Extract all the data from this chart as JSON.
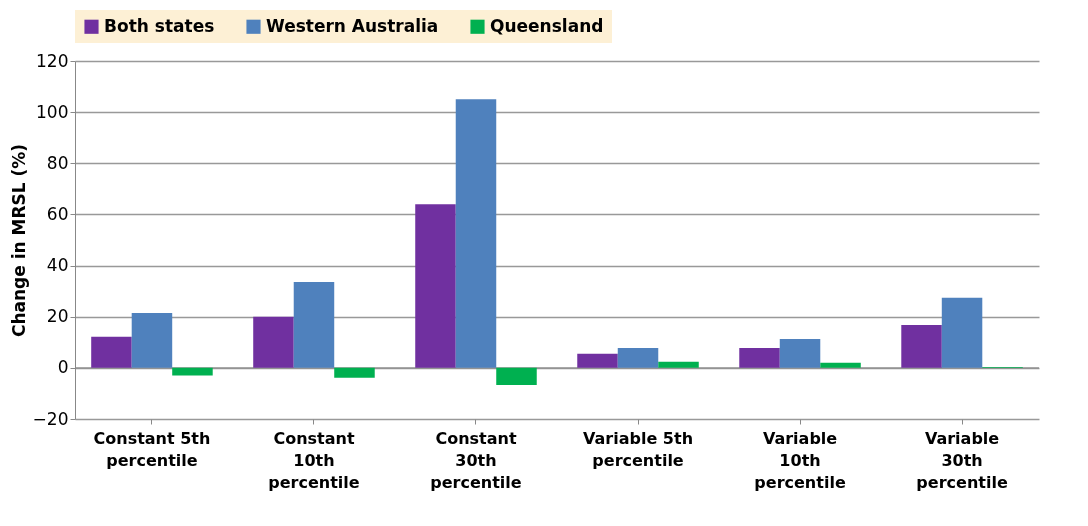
{
  "chart_data": {
    "type": "bar",
    "ylabel": "Change in MRSL (%)",
    "categories": [
      "Constant 5th percentile",
      "Constant 10th percentile",
      "Constant 30th percentile",
      "Variable 5th percentile",
      "Variable 10th percentile",
      "Variable 30th percentile"
    ],
    "series": [
      {
        "name": "Both states",
        "color": "#7030a0",
        "values": [
          12.2,
          20,
          64,
          5.5,
          7.8,
          16.8
        ]
      },
      {
        "name": "Western Australia",
        "color": "#4f81bd",
        "values": [
          21.5,
          33.6,
          105,
          7.8,
          11.3,
          27.4
        ]
      },
      {
        "name": "Queensland",
        "color": "#00b050",
        "values": [
          -3,
          -3.9,
          -6.7,
          2.4,
          2,
          0.3
        ]
      }
    ],
    "ylim": [
      -20,
      120
    ],
    "yticks": [
      -20,
      0,
      20,
      40,
      60,
      80,
      100,
      120
    ],
    "grid": "y",
    "legend": "top"
  }
}
